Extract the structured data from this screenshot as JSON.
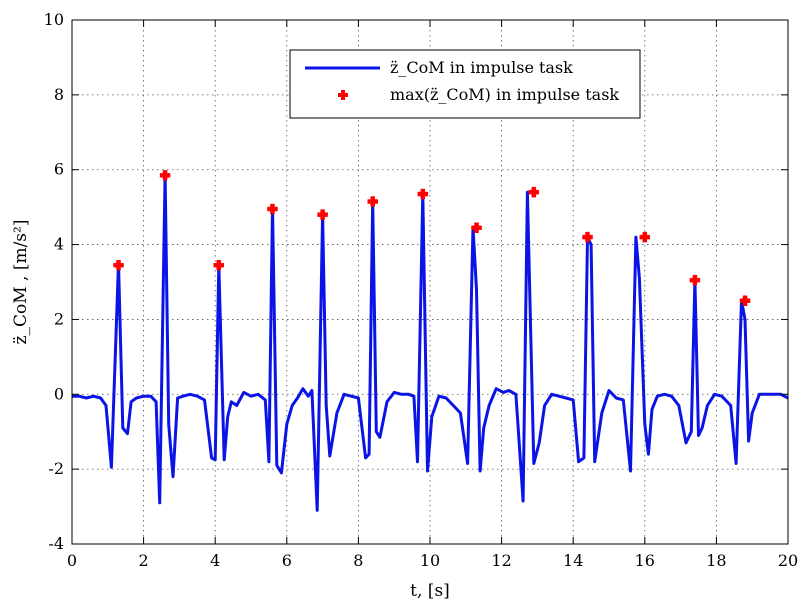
{
  "chart_data": {
    "type": "line",
    "xlabel": "t, [s]",
    "ylabel": "z̈_CoM , [m/s²]",
    "xlim": [
      0,
      20
    ],
    "ylim": [
      -4,
      10
    ],
    "xticks": [
      0,
      2,
      4,
      6,
      8,
      10,
      12,
      14,
      16,
      18,
      20
    ],
    "yticks": [
      -4,
      -2,
      0,
      2,
      4,
      6,
      8,
      10
    ],
    "grid": true,
    "legend_position": "top-right",
    "colors": {
      "line": "#0a14e6",
      "marker": "#ff0000"
    },
    "series": [
      {
        "name": "z̈_CoM in impulse task",
        "kind": "line",
        "x": [
          0,
          0.2,
          0.4,
          0.6,
          0.8,
          0.95,
          1.1,
          1.3,
          1.42,
          1.55,
          1.65,
          1.8,
          2.0,
          2.2,
          2.35,
          2.45,
          2.6,
          2.7,
          2.82,
          2.95,
          3.1,
          3.3,
          3.5,
          3.7,
          3.9,
          4.0,
          4.1,
          4.25,
          4.35,
          4.45,
          4.6,
          4.8,
          5.0,
          5.2,
          5.4,
          5.5,
          5.6,
          5.72,
          5.85,
          6.0,
          6.15,
          6.3,
          6.45,
          6.6,
          6.7,
          6.85,
          7.0,
          7.1,
          7.2,
          7.4,
          7.6,
          7.8,
          8.0,
          8.2,
          8.3,
          8.4,
          8.5,
          8.6,
          8.8,
          9.0,
          9.2,
          9.4,
          9.55,
          9.65,
          9.8,
          9.93,
          10.05,
          10.25,
          10.45,
          10.65,
          10.85,
          11.05,
          11.2,
          11.3,
          11.4,
          11.5,
          11.65,
          11.85,
          12.05,
          12.2,
          12.4,
          12.6,
          12.72,
          12.9,
          13.05,
          13.2,
          13.4,
          13.6,
          13.8,
          14.0,
          14.15,
          14.3,
          14.4,
          14.5,
          14.6,
          14.8,
          15.0,
          15.2,
          15.4,
          15.6,
          15.75,
          15.85,
          16.0,
          16.1,
          16.2,
          16.35,
          16.55,
          16.75,
          16.95,
          17.15,
          17.3,
          17.4,
          17.5,
          17.6,
          17.75,
          17.95,
          18.15,
          18.4,
          18.55,
          18.7,
          18.8,
          18.9,
          19.0,
          19.2,
          19.4,
          19.6,
          19.8,
          20.0
        ],
        "y": [
          -0.05,
          -0.05,
          -0.1,
          -0.05,
          -0.1,
          -0.3,
          -1.95,
          3.5,
          -0.9,
          -1.05,
          -0.2,
          -0.1,
          -0.05,
          -0.05,
          -0.2,
          -2.9,
          5.85,
          -0.8,
          -2.2,
          -0.1,
          -0.05,
          0.0,
          -0.05,
          -0.15,
          -1.7,
          -1.75,
          3.45,
          -1.75,
          -0.6,
          -0.2,
          -0.3,
          0.05,
          -0.05,
          0.0,
          -0.15,
          -1.8,
          5.0,
          -1.9,
          -2.1,
          -0.8,
          -0.3,
          -0.1,
          0.15,
          -0.05,
          0.1,
          -3.1,
          4.8,
          -0.3,
          -1.65,
          -0.5,
          0.0,
          -0.05,
          -0.1,
          -1.7,
          -1.6,
          5.15,
          -1.0,
          -1.15,
          -0.2,
          0.05,
          0.0,
          0.0,
          -0.05,
          -1.8,
          5.35,
          -2.05,
          -0.6,
          -0.05,
          -0.1,
          -0.3,
          -0.5,
          -1.85,
          4.45,
          2.8,
          -2.05,
          -0.9,
          -0.3,
          0.15,
          0.05,
          0.1,
          0.0,
          -2.85,
          5.4,
          -1.85,
          -1.3,
          -0.3,
          0.0,
          -0.05,
          -0.1,
          -0.15,
          -1.8,
          -1.7,
          4.2,
          4.0,
          -1.8,
          -0.5,
          0.1,
          -0.1,
          -0.15,
          -2.05,
          4.2,
          3.1,
          -0.8,
          -1.6,
          -0.4,
          -0.05,
          0.0,
          -0.05,
          -0.3,
          -1.3,
          -1.0,
          3.05,
          -1.1,
          -0.9,
          -0.3,
          0.0,
          -0.05,
          -0.3,
          -1.85,
          2.5,
          2.0,
          -1.25,
          -0.5,
          0.0,
          0.0,
          0.0,
          0.0,
          -0.1
        ]
      },
      {
        "name": "max(z̈_CoM) in impulse task",
        "kind": "marker",
        "x": [
          1.3,
          2.6,
          4.1,
          5.6,
          7.0,
          8.4,
          9.8,
          11.3,
          12.9,
          14.4,
          16.0,
          17.4,
          18.8
        ],
        "y": [
          3.45,
          5.85,
          3.45,
          4.95,
          4.8,
          5.15,
          5.35,
          4.45,
          5.4,
          4.2,
          4.2,
          3.05,
          2.5
        ]
      }
    ]
  }
}
